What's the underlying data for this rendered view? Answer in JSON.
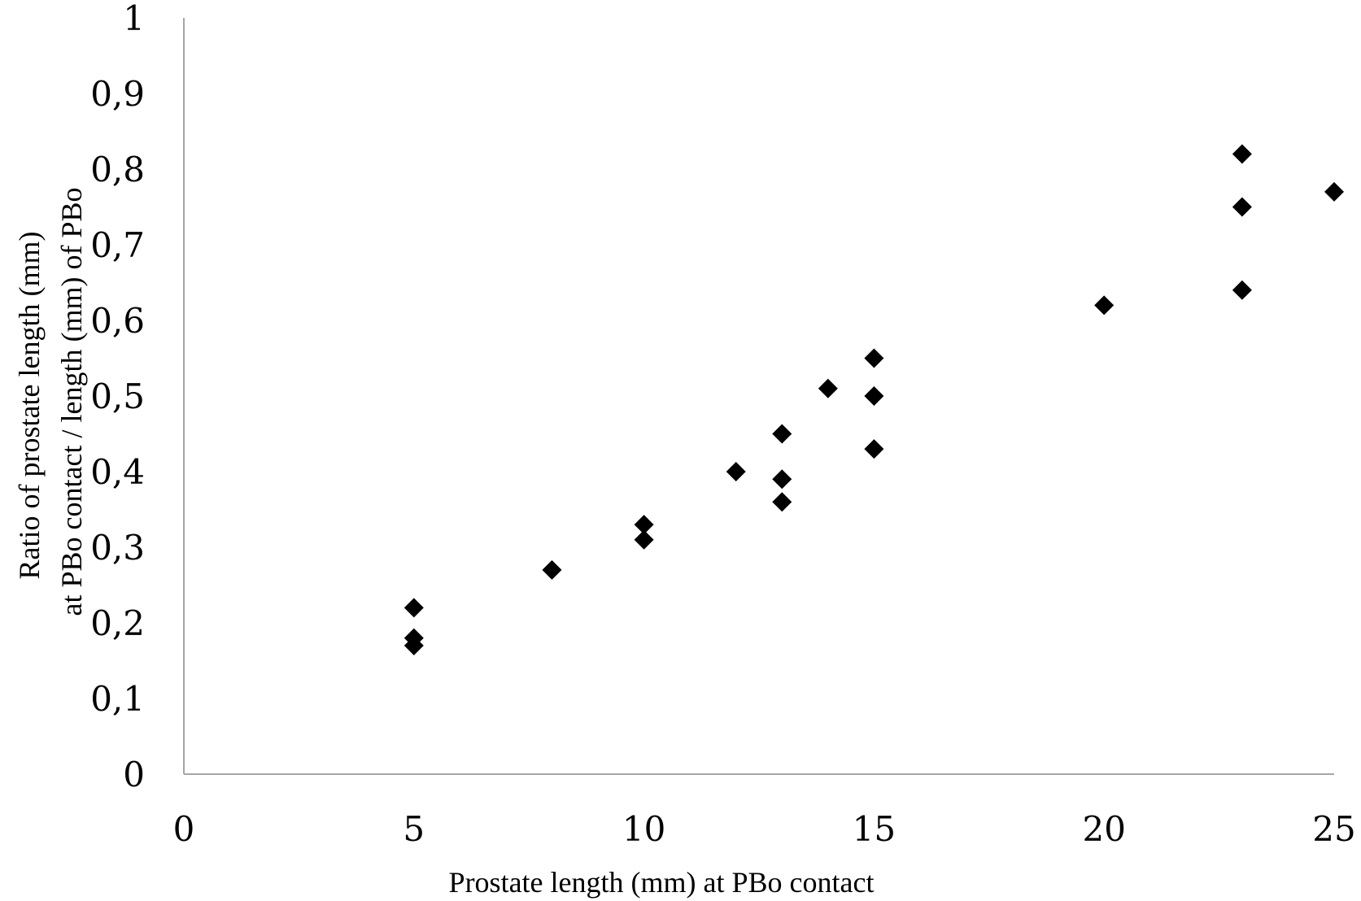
{
  "chart_data": {
    "type": "scatter",
    "title": "",
    "xlabel": "Prostate length (mm) at PBo contact",
    "ylabel_lines": [
      "Ratio of prostate length (mm)",
      "at PBo contact / length (mm) of PBo"
    ],
    "xlim": [
      0,
      25
    ],
    "ylim": [
      0,
      1
    ],
    "x_ticks": [
      "0",
      "5",
      "10",
      "15",
      "20",
      "25"
    ],
    "y_ticks": [
      "0",
      "0,1",
      "0,2",
      "0,3",
      "0,4",
      "0,5",
      "0,6",
      "0,7",
      "0,8",
      "0,9",
      "1"
    ],
    "grid": false,
    "legend": "none",
    "marker": "diamond",
    "marker_color": "#000000",
    "axis_color": "#a6a6a6",
    "series": [
      {
        "points": [
          {
            "x": 5,
            "y": 0.22
          },
          {
            "x": 5,
            "y": 0.18
          },
          {
            "x": 5,
            "y": 0.17
          },
          {
            "x": 8,
            "y": 0.27
          },
          {
            "x": 10,
            "y": 0.33
          },
          {
            "x": 10,
            "y": 0.31
          },
          {
            "x": 12,
            "y": 0.4
          },
          {
            "x": 13,
            "y": 0.45
          },
          {
            "x": 13,
            "y": 0.39
          },
          {
            "x": 13,
            "y": 0.36
          },
          {
            "x": 14,
            "y": 0.51
          },
          {
            "x": 15,
            "y": 0.55
          },
          {
            "x": 15,
            "y": 0.5
          },
          {
            "x": 15,
            "y": 0.43
          },
          {
            "x": 20,
            "y": 0.62
          },
          {
            "x": 23,
            "y": 0.82
          },
          {
            "x": 23,
            "y": 0.75
          },
          {
            "x": 23,
            "y": 0.64
          },
          {
            "x": 25,
            "y": 0.77
          }
        ]
      }
    ]
  }
}
